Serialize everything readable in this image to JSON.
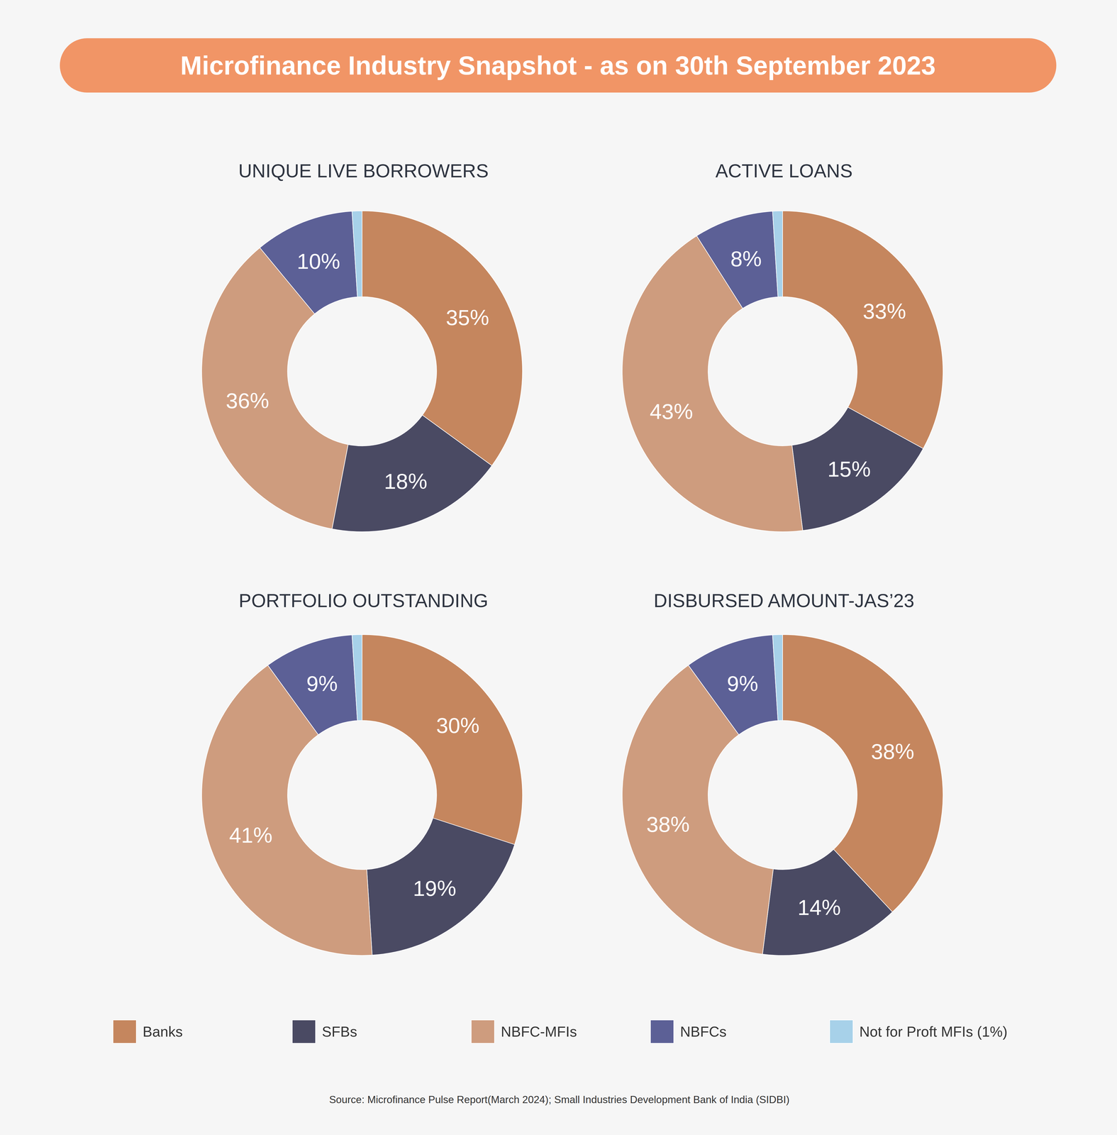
{
  "title": "Microfinance Industry Snapshot - as on 30th September 2023",
  "source": "Source: Microfinance Pulse Report(March 2024); Small Industries Development Bank of India (SIDBI)",
  "chart_data": [
    {
      "type": "pie",
      "title": "UNIQUE LIVE BORROWERS",
      "categories": [
        "Banks",
        "SFBs",
        "NBFC-MFIs",
        "NBFCs",
        "Not for Proft MFIs (1%)"
      ],
      "values": [
        35,
        18,
        36,
        10,
        1
      ],
      "value_labels": [
        "35%",
        "18%",
        "36%",
        "10%",
        null
      ],
      "colors": [
        "#c5865e",
        "#4a4a63",
        "#ce9c7e",
        "#5c6096",
        "#a7d1e9"
      ],
      "data_labels": true,
      "legend": "bottom"
    },
    {
      "type": "pie",
      "title": "ACTIVE LOANS",
      "categories": [
        "Banks",
        "SFBs",
        "NBFC-MFIs",
        "NBFCs",
        "Not for Proft MFIs (1%)"
      ],
      "values": [
        33,
        15,
        43,
        8,
        1
      ],
      "value_labels": [
        "33%",
        "15%",
        "43%",
        "8%",
        null
      ],
      "colors": [
        "#c5865e",
        "#4a4a63",
        "#ce9c7e",
        "#5c6096",
        "#a7d1e9"
      ],
      "data_labels": true,
      "legend": "bottom"
    },
    {
      "type": "pie",
      "title": "PORTFOLIO OUTSTANDING",
      "categories": [
        "Banks",
        "SFBs",
        "NBFC-MFIs",
        "NBFCs",
        "Not for Proft MFIs (1%)"
      ],
      "values": [
        30,
        19,
        41,
        9,
        1
      ],
      "value_labels": [
        "30%",
        "19%",
        "41%",
        "9%",
        null
      ],
      "colors": [
        "#c5865e",
        "#4a4a63",
        "#ce9c7e",
        "#5c6096",
        "#a7d1e9"
      ],
      "data_labels": true,
      "legend": "bottom"
    },
    {
      "type": "pie",
      "title": "DISBURSED AMOUNT-JAS’23",
      "categories": [
        "Banks",
        "SFBs",
        "NBFC-MFIs",
        "NBFCs",
        "Not for Proft MFIs (1%)"
      ],
      "values": [
        38,
        14,
        38,
        9,
        1
      ],
      "value_labels": [
        "38%",
        "14%",
        "38%",
        "9%",
        null
      ],
      "colors": [
        "#c5865e",
        "#4a4a63",
        "#ce9c7e",
        "#5c6096",
        "#a7d1e9"
      ],
      "data_labels": true,
      "legend": "bottom"
    }
  ]
}
